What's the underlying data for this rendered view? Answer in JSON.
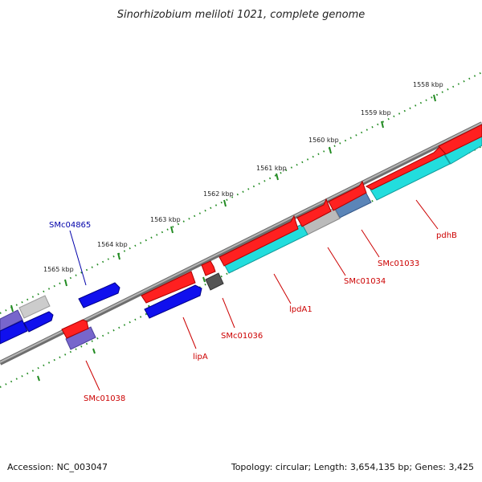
{
  "title": "Sinorhizobium meliloti 1021, complete genome",
  "footer": {
    "accession": "Accession: NC_003047",
    "topology": "Topology: circular; Length: 3,654,135 bp; Genes: 3,425"
  },
  "ruler": {
    "labels": [
      "1558 kbp",
      "1559 kbp",
      "1560 kbp",
      "1561 kbp",
      "1562 kbp",
      "1563 kbp",
      "1564 kbp",
      "1565 kbp"
    ]
  },
  "gene_labels": {
    "pdhB": "pdhB",
    "SMc01033": "SMc01033",
    "SMc01034": "SMc01034",
    "lpdA1": "lpdA1",
    "SMc01036": "SMc01036",
    "lipA": "lipA",
    "SMc01038": "SMc01038",
    "SMc04865": "SMc04865"
  },
  "colors": {
    "forward_gene": "#e00000",
    "reverse_gene": "#0000e0",
    "cog_cyan": "#22dddd",
    "cog_grey": "#aaaaaa",
    "cog_steel": "#5b85b8",
    "cog_lavender": "#7766cc",
    "cog_dark": "#555555",
    "backbone": "#808080",
    "tick": "#228b22",
    "label_red": "#cc0000",
    "label_blue": "#0000aa"
  }
}
